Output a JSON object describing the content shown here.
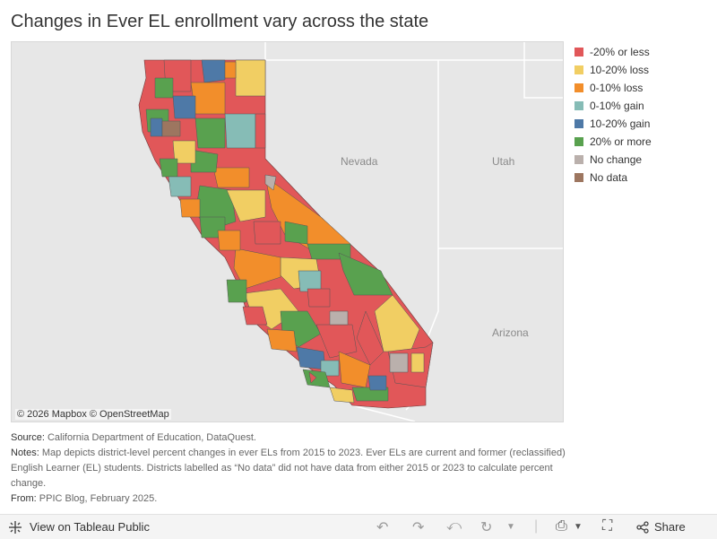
{
  "title": "Changes in Ever EL enrollment vary across the state",
  "map": {
    "state_labels": [
      "Nevada",
      "Utah",
      "Arizona"
    ],
    "attribution": "© 2026 Mapbox  © OpenStreetMap"
  },
  "legend": [
    {
      "label": "-20% or less",
      "color": "#e15759"
    },
    {
      "label": "10-20% loss",
      "color": "#f1ce63"
    },
    {
      "label": "0-10% loss",
      "color": "#f28e2b"
    },
    {
      "label": "0-10% gain",
      "color": "#86bcb6"
    },
    {
      "label": "10-20% gain",
      "color": "#4e79a7"
    },
    {
      "label": "20% or more",
      "color": "#59a14f"
    },
    {
      "label": "No change",
      "color": "#bab0ac"
    },
    {
      "label": "No data",
      "color": "#9d7660"
    }
  ],
  "notes": {
    "source_label": "Source:",
    "source_text": "California Department of Education, DataQuest.",
    "notes_label": "Notes:",
    "notes_text": "Map depicts district-level percent changes in ever ELs from 2015 to 2023. Ever ELs are current and former (reclassified) English Learner (EL) students. Districts labelled as “No data” did not have data from either 2015 or 2023 to calculate percent change.",
    "from_label": "From:",
    "from_text": "PPIC Blog, February 2025."
  },
  "footer": {
    "view_label": "View on Tableau Public",
    "share_label": "Share"
  }
}
